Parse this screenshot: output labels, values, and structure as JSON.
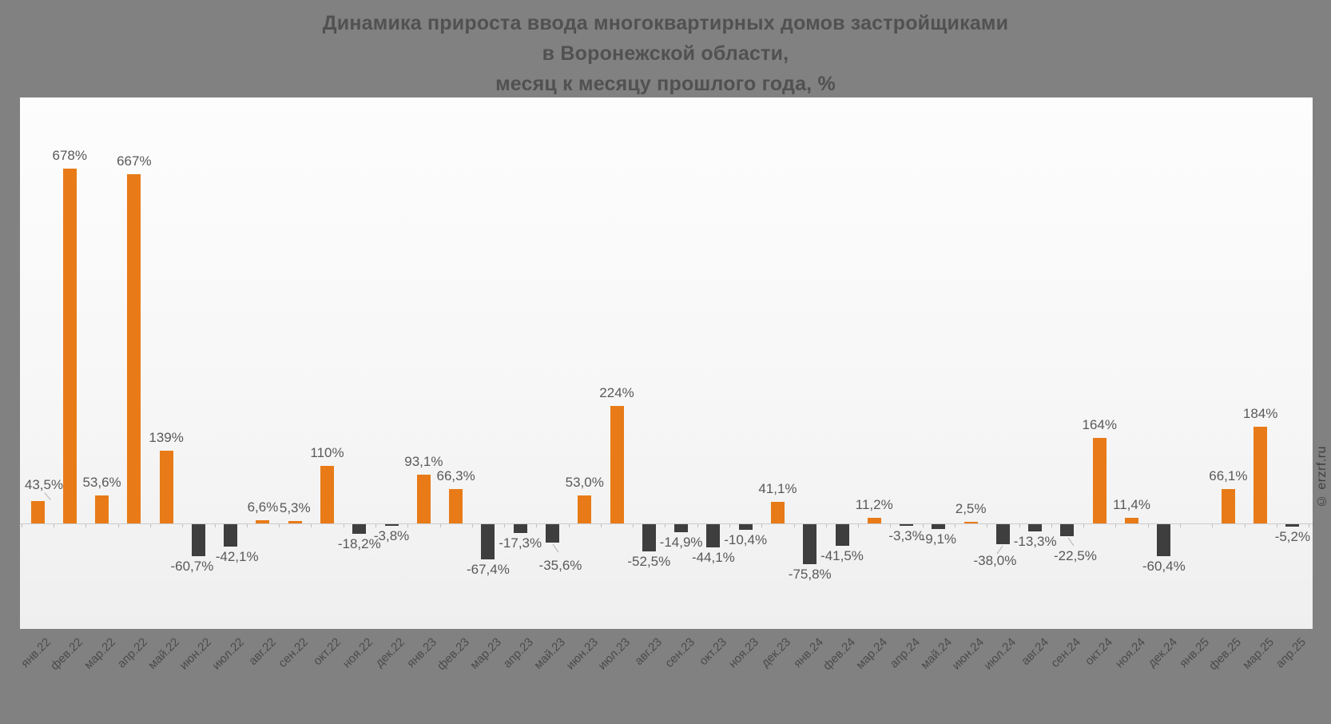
{
  "title_lines": [
    "Динамика прироста ввода многоквартирных домов застройщиками",
    "в Воронежской области,",
    "месяц к месяцу прошлого года, %"
  ],
  "watermark": "© erzrf.ru",
  "chart_data": {
    "type": "bar",
    "title": "Динамика прироста ввода многоквартирных домов застройщиками в Воронежской области, месяц к месяцу прошлого года, %",
    "xlabel": "",
    "ylabel": "",
    "ylim": [
      -110,
      740
    ],
    "grid": false,
    "legend": false,
    "y_axis_visible": false,
    "bar_colors": {
      "positive": "#e87b17",
      "negative": "#3e3e3e"
    },
    "label_text_color": "#595959",
    "axis_label_color": "#4b4b4b",
    "categories": [
      "янв.22",
      "фев.22",
      "мар.22",
      "апр.22",
      "май.22",
      "июн.22",
      "июл.22",
      "авг.22",
      "сен.22",
      "окт.22",
      "ноя.22",
      "дек.22",
      "янв.23",
      "фев.23",
      "мар.23",
      "апр.23",
      "май.23",
      "июн.23",
      "июл.23",
      "авг.23",
      "сен.23",
      "окт.23",
      "ноя.23",
      "дек.23",
      "янв.24",
      "фев.24",
      "мар.24",
      "апр.24",
      "май.24",
      "июн.24",
      "июл.24",
      "авг.24",
      "сен.24",
      "окт.24",
      "ноя.24",
      "дек.24",
      "янв.25",
      "фев.25",
      "мар.25",
      "апр.25"
    ],
    "values": [
      43.5,
      678,
      53.6,
      667,
      139,
      -60.7,
      -42.1,
      6.6,
      5.3,
      110,
      -18.2,
      -3.8,
      93.1,
      66.3,
      -67.4,
      -17.3,
      -35.6,
      53.0,
      224,
      -52.5,
      -14.9,
      -44.1,
      -10.4,
      41.1,
      -75.8,
      -41.5,
      11.2,
      -3.3,
      -9.1,
      2.5,
      -38.0,
      -13.3,
      -22.5,
      164,
      11.4,
      -60.4,
      null,
      66.1,
      184,
      -5.2
    ],
    "labels": [
      "43,5%",
      "678%",
      "53,6%",
      "667%",
      "139%",
      "-60,7%",
      "-42,1%",
      "6,6%",
      "5,3%",
      "110%",
      "-18,2%",
      "-3,8%",
      "93,1%",
      "66,3%",
      "-67,4%",
      "-17,3%",
      "-35,6%",
      "53,0%",
      "224%",
      "-52,5%",
      "-14,9%",
      "-44,1%",
      "-10,4%",
      "41,1%",
      "-75,8%",
      "-41,5%",
      "11,2%",
      "-3,3%",
      "-9,1%",
      "2,5%",
      "-38,0%",
      "-13,3%",
      "-22,5%",
      "164%",
      "11,4%",
      "-60,4%",
      "",
      "66,1%",
      "184%",
      "-5,2%"
    ]
  }
}
